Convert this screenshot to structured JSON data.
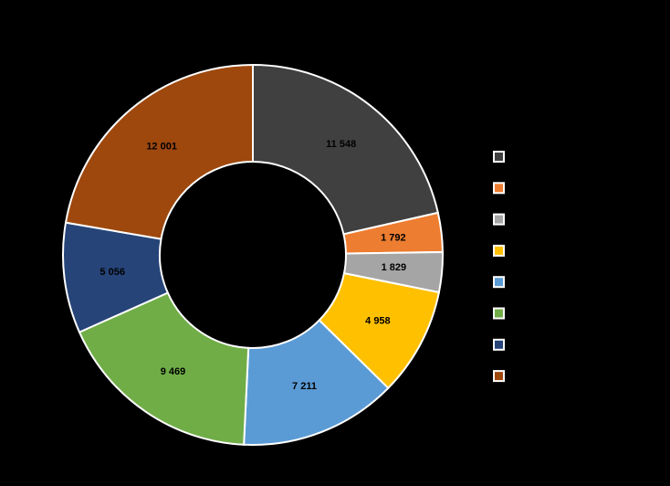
{
  "chart_data": {
    "type": "donut",
    "categories": [
      null,
      null,
      null,
      null,
      null,
      null,
      null,
      null
    ],
    "values": [
      11548,
      1792,
      1829,
      4958,
      7211,
      9469,
      5056,
      12001
    ],
    "value_labels": [
      "11 548",
      "1 792",
      "1 829",
      "4 958",
      "7 211",
      "9 469",
      "5 056",
      "12 001"
    ],
    "colors": [
      "#404040",
      "#ed7d31",
      "#a5a5a5",
      "#ffc000",
      "#5b9bd5",
      "#70ad47",
      "#264478",
      "#9e480e"
    ],
    "legend": "right"
  }
}
